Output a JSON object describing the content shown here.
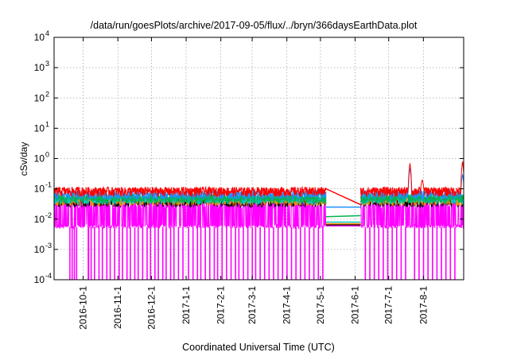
{
  "chart_data": {
    "type": "line",
    "title": "/data/run/goesPlots/archive/2017-09-05/flux/../bryn/366daysEarthData.plot",
    "xlabel": "Coordinated Universal Time (UTC)",
    "ylabel": "cSv/day",
    "y_scale": "log",
    "ylim": [
      0.0001,
      10000
    ],
    "y_ticks": [
      {
        "value": 0.0001,
        "base": "10",
        "exp": "-4"
      },
      {
        "value": 0.001,
        "base": "10",
        "exp": "-3"
      },
      {
        "value": 0.01,
        "base": "10",
        "exp": "-2"
      },
      {
        "value": 0.1,
        "base": "10",
        "exp": "-1"
      },
      {
        "value": 1,
        "base": "10",
        "exp": "0"
      },
      {
        "value": 10,
        "base": "10",
        "exp": "1"
      },
      {
        "value": 100,
        "base": "10",
        "exp": "2"
      },
      {
        "value": 1000,
        "base": "10",
        "exp": "3"
      },
      {
        "value": 10000,
        "base": "10",
        "exp": "4"
      }
    ],
    "xlim": [
      "2016-09-05",
      "2017-09-06"
    ],
    "x_ticks": [
      "2016-10-1",
      "2016-11-1",
      "2016-12-1",
      "2017-1-1",
      "2017-2-1",
      "2017-3-1",
      "2017-4-1",
      "2017-5-1",
      "2017-6-1",
      "2017-7-1",
      "2017-8-1"
    ],
    "grid": true,
    "data_gap": {
      "start": "2017-05-06",
      "end": "2017-06-06"
    },
    "series": [
      {
        "color": "#ff0000",
        "base_level": 0.1,
        "gap_start_value": 0.1,
        "gap_end_value": 0.03,
        "spikes": [
          {
            "date": "2017-07-20",
            "value": 0.7
          },
          {
            "date": "2017-07-31",
            "value": 0.2
          },
          {
            "date": "2017-09-05",
            "value": 0.8
          }
        ]
      },
      {
        "color": "#1e90ff",
        "base_level": 0.08,
        "gap_start_value": 0.025,
        "gap_end_value": 0.025,
        "spikes": [
          {
            "date": "2017-07-20",
            "value": 0.5
          },
          {
            "date": "2017-09-05",
            "value": 0.3
          }
        ]
      },
      {
        "color": "#00b050",
        "base_level": 0.06,
        "gap_start_value": 0.012,
        "gap_end_value": 0.013,
        "spikes": []
      },
      {
        "color": "#00c8c8",
        "base_level": 0.055,
        "gap_start_value": 0.008,
        "gap_end_value": 0.008,
        "spikes": []
      },
      {
        "color": "#ff8c00",
        "base_level": 0.05,
        "gap_start_value": 0.007,
        "gap_end_value": 0.007,
        "spikes": []
      },
      {
        "color": "#000000",
        "base_level": 0.045,
        "gap_start_value": 0.0065,
        "gap_end_value": 0.0065,
        "spikes": []
      },
      {
        "color": "#ff00ff",
        "base_level": 0.045,
        "floor": 0.0055,
        "gap_start_value": 0.006,
        "gap_end_value": 0.006,
        "dropouts": [
          "2016-09-19",
          "2016-09-21",
          "2016-09-23",
          "2016-09-25",
          "2016-10-08",
          "2016-10-11",
          "2016-10-15",
          "2016-10-18",
          "2016-10-22",
          "2016-10-25",
          "2016-10-29",
          "2016-11-02",
          "2016-11-05",
          "2016-11-09",
          "2016-11-12",
          "2016-11-16",
          "2016-11-19",
          "2016-11-23",
          "2016-11-27",
          "2016-11-30",
          "2016-12-04",
          "2016-12-07",
          "2016-12-11",
          "2016-12-14",
          "2016-12-18",
          "2016-12-21",
          "2016-12-25",
          "2016-12-29",
          "2017-01-03",
          "2017-01-07",
          "2017-01-11",
          "2017-01-14",
          "2017-01-18",
          "2017-01-22",
          "2017-01-26",
          "2017-01-29",
          "2017-02-02",
          "2017-02-06",
          "2017-02-10",
          "2017-02-14",
          "2017-02-17",
          "2017-02-21",
          "2017-02-25",
          "2017-03-01",
          "2017-03-04",
          "2017-03-08",
          "2017-03-12",
          "2017-03-16",
          "2017-03-20",
          "2017-03-24",
          "2017-03-28",
          "2017-04-01",
          "2017-04-05",
          "2017-04-09",
          "2017-04-13",
          "2017-04-17",
          "2017-04-21",
          "2017-04-25",
          "2017-04-29",
          "2017-05-03",
          "2017-06-10",
          "2017-06-14",
          "2017-06-18",
          "2017-06-22",
          "2017-06-26",
          "2017-06-30",
          "2017-07-04",
          "2017-07-08",
          "2017-07-12",
          "2017-07-16",
          "2017-07-24",
          "2017-07-28",
          "2017-08-01",
          "2017-08-05",
          "2017-08-09",
          "2017-08-13",
          "2017-08-17",
          "2017-08-21",
          "2017-08-25",
          "2017-08-29"
        ]
      }
    ]
  }
}
